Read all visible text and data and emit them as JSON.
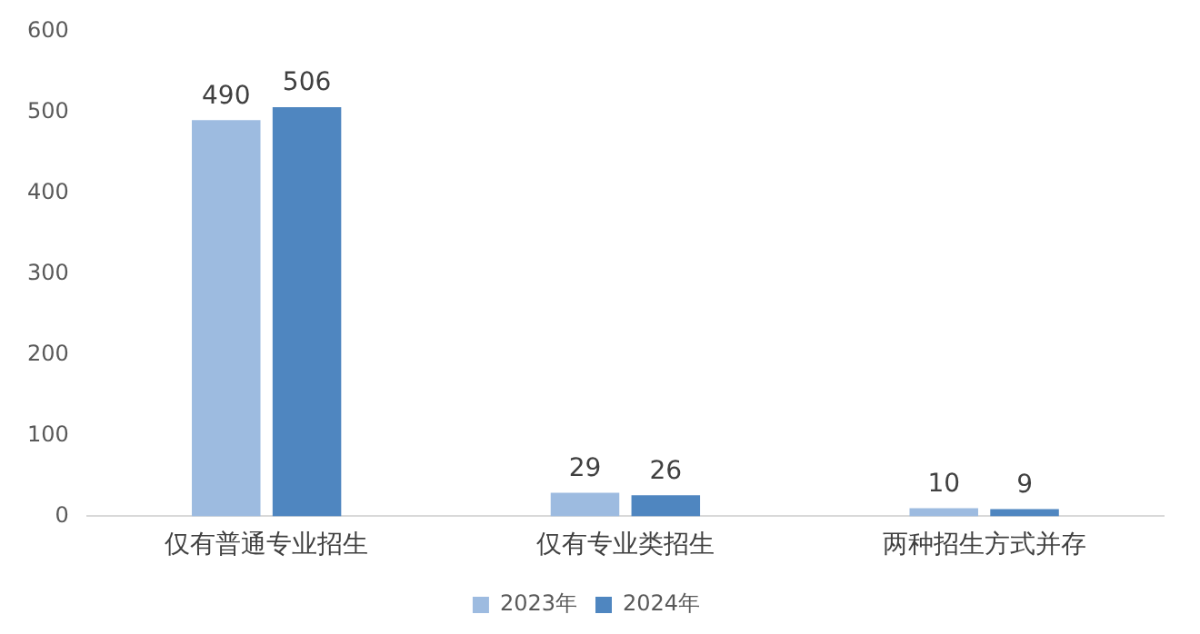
{
  "chart_data": {
    "type": "bar",
    "categories": [
      "仅有普通专业招生",
      "仅有专业类招生",
      "两种招生方式并存"
    ],
    "series": [
      {
        "name": "2023年",
        "color": "#9dbbe0",
        "values": [
          490,
          29,
          10
        ]
      },
      {
        "name": "2024年",
        "color": "#4f86c0",
        "values": [
          506,
          26,
          9
        ]
      }
    ],
    "ylim": [
      0,
      600
    ],
    "yticks": [
      0,
      100,
      200,
      300,
      400,
      500,
      600
    ],
    "grid": false,
    "legend": "bottom",
    "data_labels": true
  }
}
